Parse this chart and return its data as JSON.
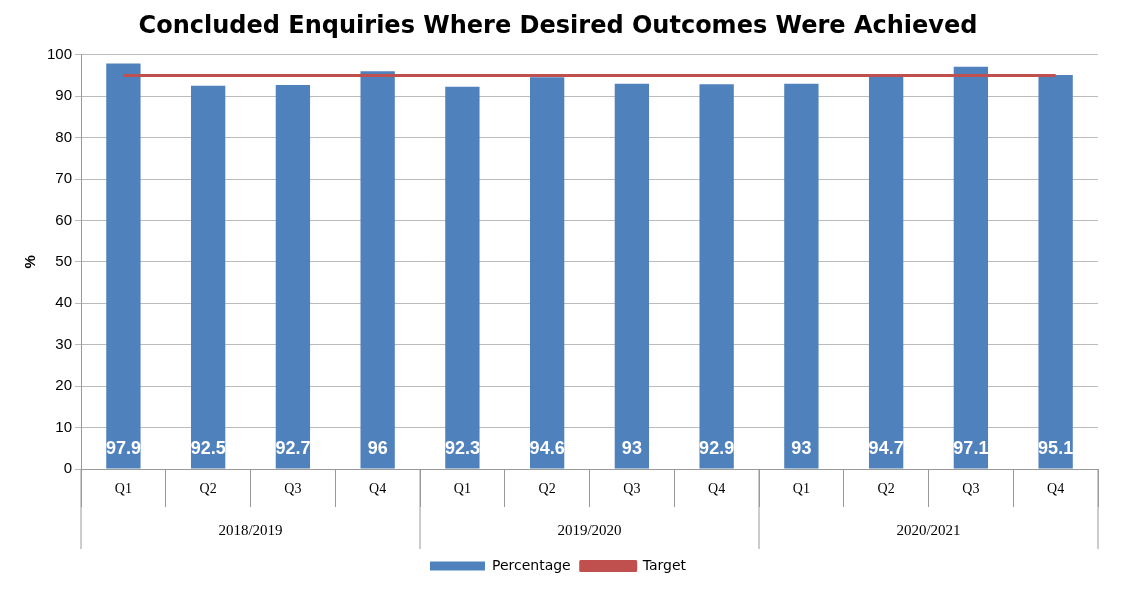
{
  "chart_data": {
    "type": "bar",
    "title": "Concluded Enquiries Where Desired Outcomes Were Achieved",
    "ylabel": "%",
    "categories": [
      "Q1",
      "Q2",
      "Q3",
      "Q4",
      "Q1",
      "Q2",
      "Q3",
      "Q4",
      "Q1",
      "Q2",
      "Q3",
      "Q4"
    ],
    "series": [
      {
        "name": "Percentage",
        "color": "#4f81bd",
        "values": [
          97.9,
          92.5,
          92.7,
          96,
          92.3,
          94.6,
          93,
          92.9,
          93,
          94.7,
          97.1,
          95.1
        ],
        "value_labels": [
          "97.9",
          "92.5",
          "92.7",
          "96",
          "92.3",
          "94.6",
          "93",
          "92.9",
          "93",
          "94.7",
          "97.1",
          "95.1"
        ]
      },
      {
        "name": "Target",
        "type": "line",
        "color": "#c0504d",
        "values": [
          95,
          95,
          95,
          95,
          95,
          95,
          95,
          95,
          95,
          95,
          95,
          95
        ]
      }
    ],
    "annotations": [
      "2018/2019",
      "2019/2020",
      "2020/2021"
    ],
    "ylim": [
      0,
      100
    ],
    "yticks": [
      0,
      10,
      20,
      30,
      40,
      50,
      60,
      70,
      80,
      90,
      100
    ],
    "grid": "y",
    "legend": "bottom",
    "marker": "none"
  }
}
